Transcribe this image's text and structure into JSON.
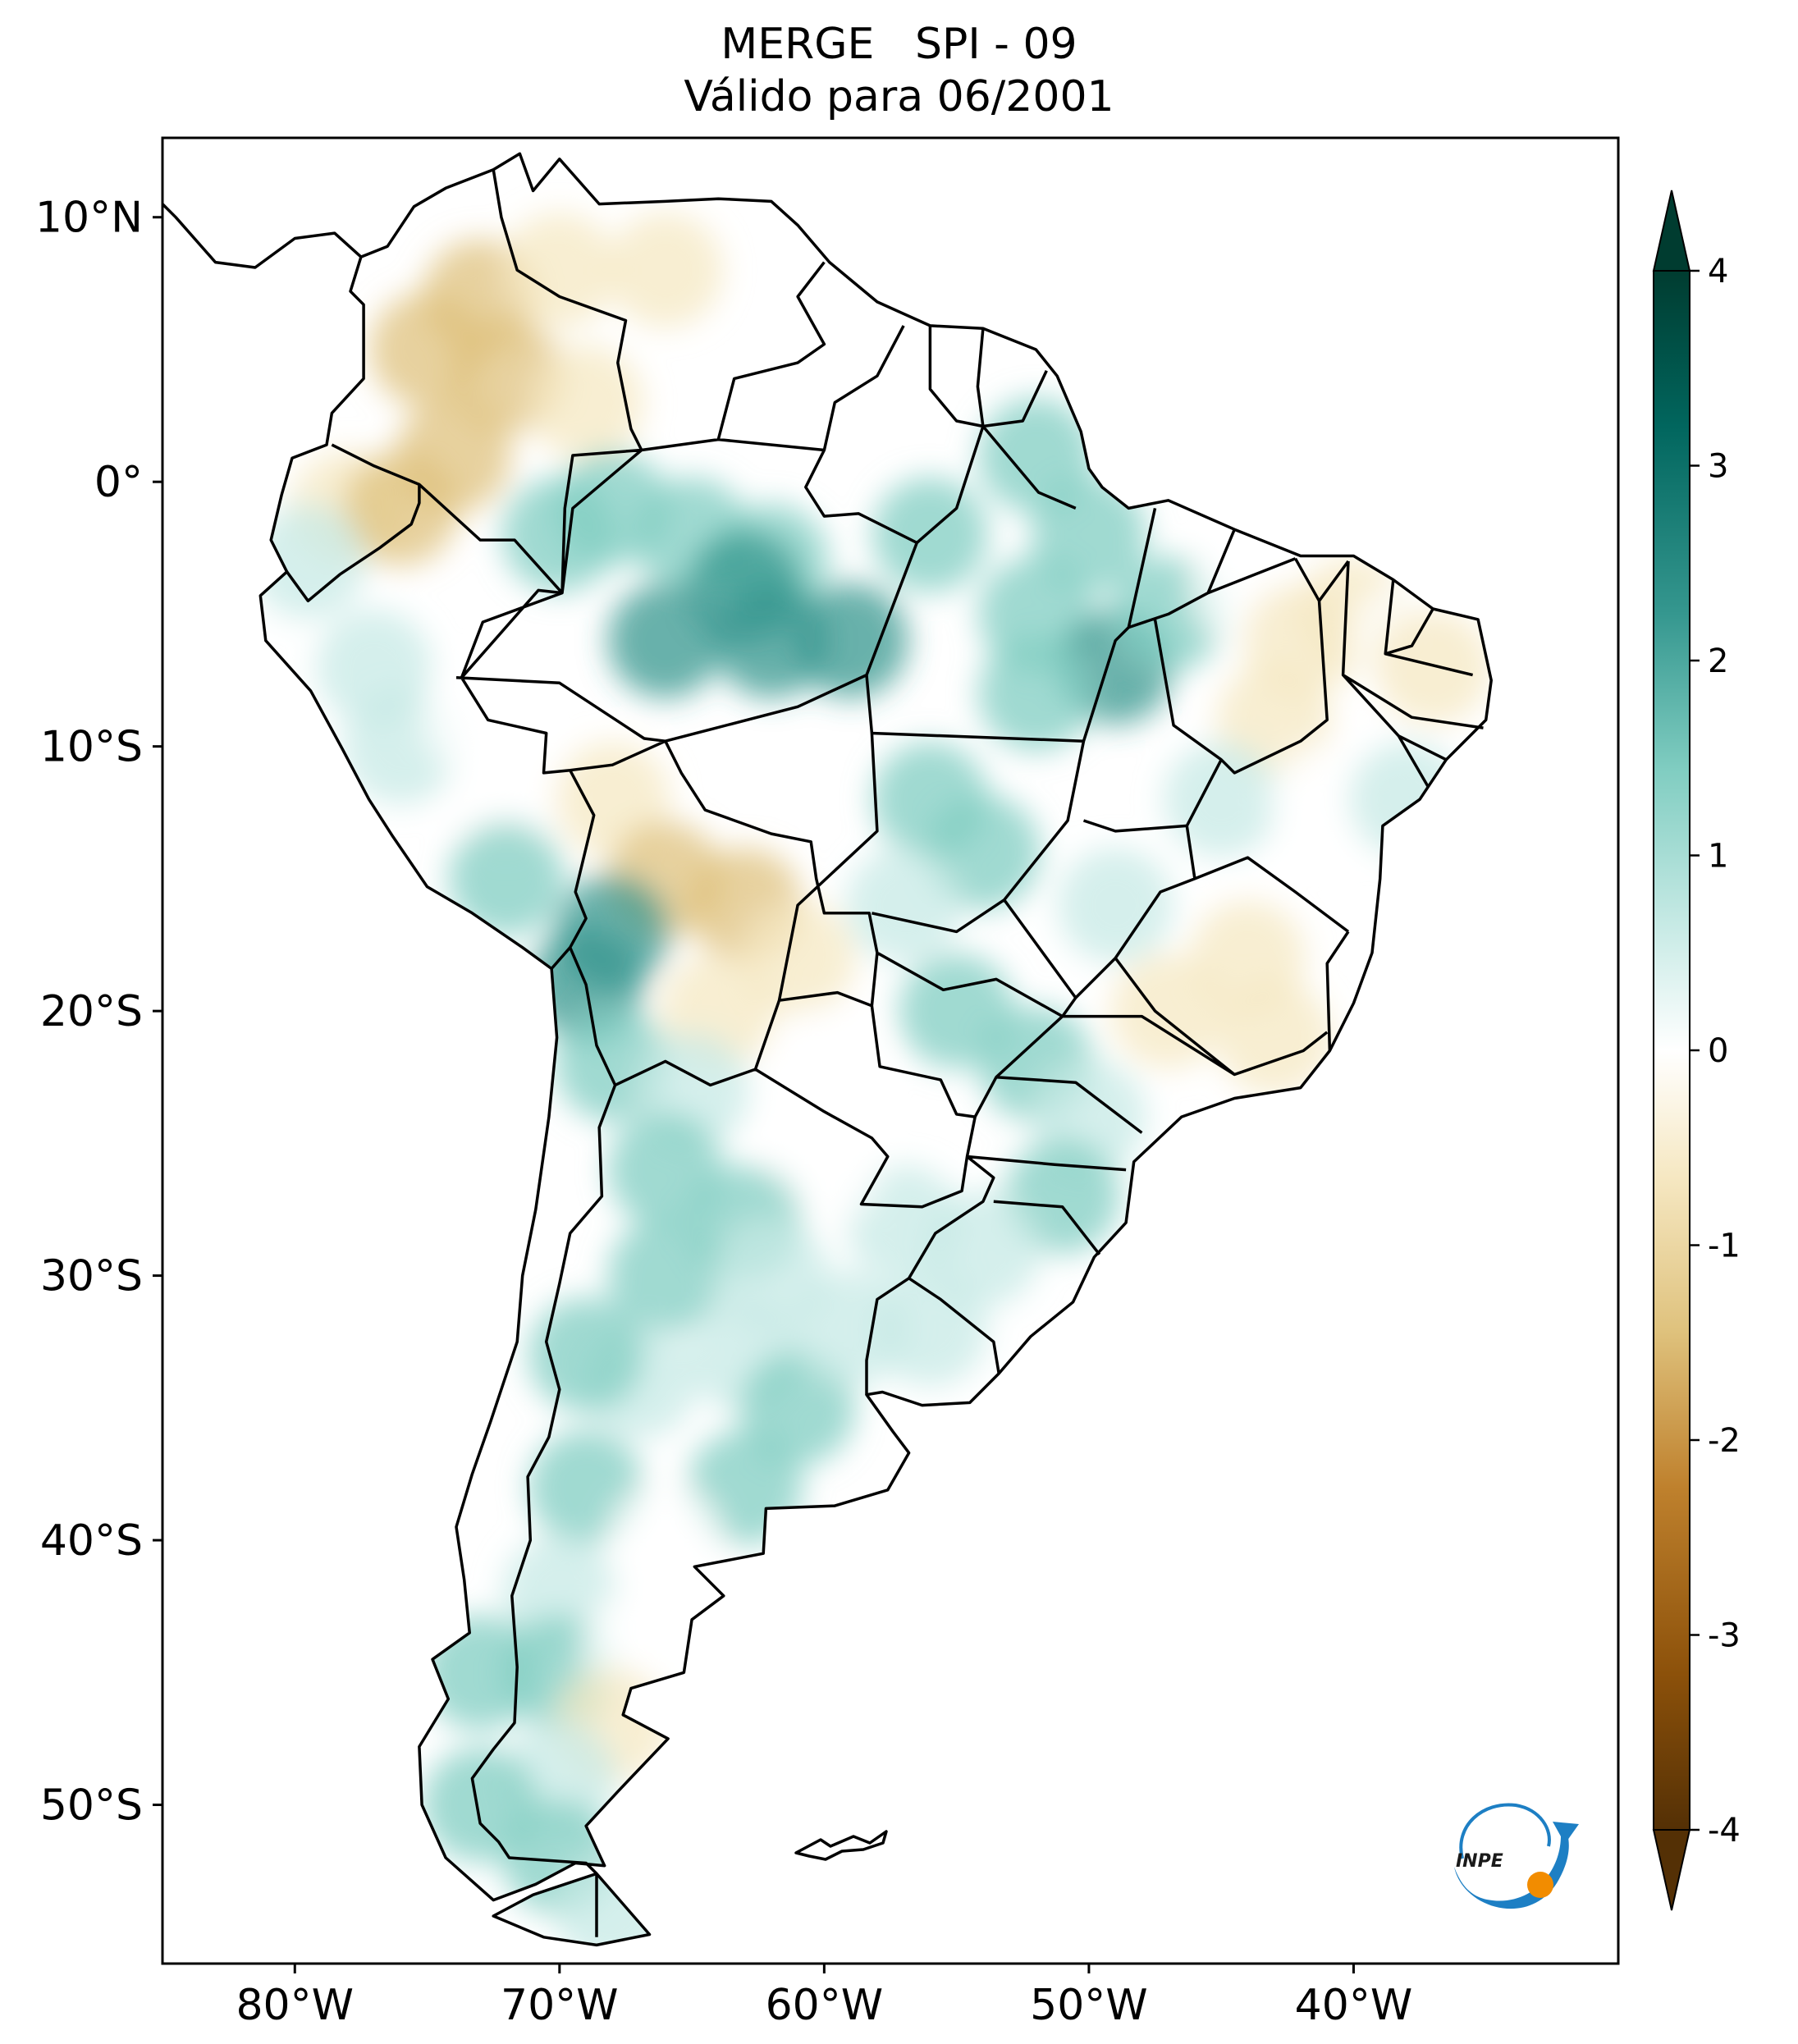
{
  "title": {
    "line1": "MERGE   SPI - 09",
    "line2": "Válido para 06/2001"
  },
  "map": {
    "lon_range": [
      -85,
      -30
    ],
    "lat_range": [
      -56,
      13
    ],
    "lat_ticks": [
      {
        "value": 10,
        "label": "10°N"
      },
      {
        "value": 0,
        "label": "0°"
      },
      {
        "value": -10,
        "label": "10°S"
      },
      {
        "value": -20,
        "label": "20°S"
      },
      {
        "value": -30,
        "label": "30°S"
      },
      {
        "value": -40,
        "label": "40°S"
      },
      {
        "value": -50,
        "label": "50°S"
      }
    ],
    "lon_ticks": [
      {
        "value": -80,
        "label": "80°W"
      },
      {
        "value": -70,
        "label": "70°W"
      },
      {
        "value": -60,
        "label": "60°W"
      },
      {
        "value": -50,
        "label": "50°W"
      },
      {
        "value": -40,
        "label": "40°W"
      }
    ]
  },
  "colorbar": {
    "min": -4,
    "max": 4,
    "ticks": [
      {
        "value": 4,
        "label": "4"
      },
      {
        "value": 3,
        "label": "3"
      },
      {
        "value": 2,
        "label": "2"
      },
      {
        "value": 1,
        "label": "1"
      },
      {
        "value": 0,
        "label": "0"
      },
      {
        "value": -1,
        "label": "-1"
      },
      {
        "value": -2,
        "label": "-2"
      },
      {
        "value": -3,
        "label": "-3"
      },
      {
        "value": -4,
        "label": "-4"
      }
    ],
    "colors": [
      "#543005",
      "#8c510a",
      "#bf812d",
      "#dfc27d",
      "#f6e8c3",
      "#ffffff",
      "#c7eae5",
      "#80cdc1",
      "#35978f",
      "#01665e",
      "#003c30"
    ]
  },
  "logo": {
    "text": "INPE",
    "colors": {
      "blue": "#1d7fc4",
      "orange": "#f28c00"
    }
  }
}
